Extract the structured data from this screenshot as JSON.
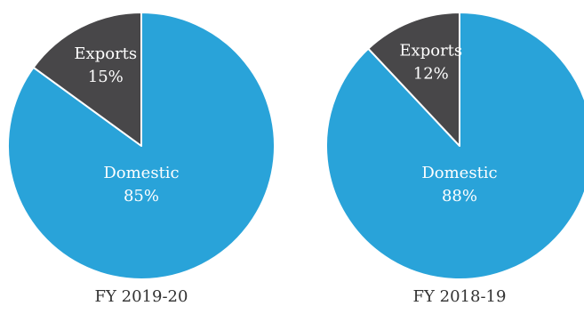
{
  "chart_data": [
    {
      "type": "pie",
      "title": "FY 2019-20",
      "slices": [
        {
          "label": "Domestic",
          "value": 85,
          "value_label": "85%",
          "color": "#29a3d9"
        },
        {
          "label": "Exports",
          "value": 15,
          "value_label": "15%",
          "color": "#484749"
        }
      ]
    },
    {
      "type": "pie",
      "title": "FY 2018-19",
      "slices": [
        {
          "label": "Domestic",
          "value": 88,
          "value_label": "88%",
          "color": "#29a3d9"
        },
        {
          "label": "Exports",
          "value": 12,
          "value_label": "12%",
          "color": "#484749"
        }
      ]
    }
  ]
}
